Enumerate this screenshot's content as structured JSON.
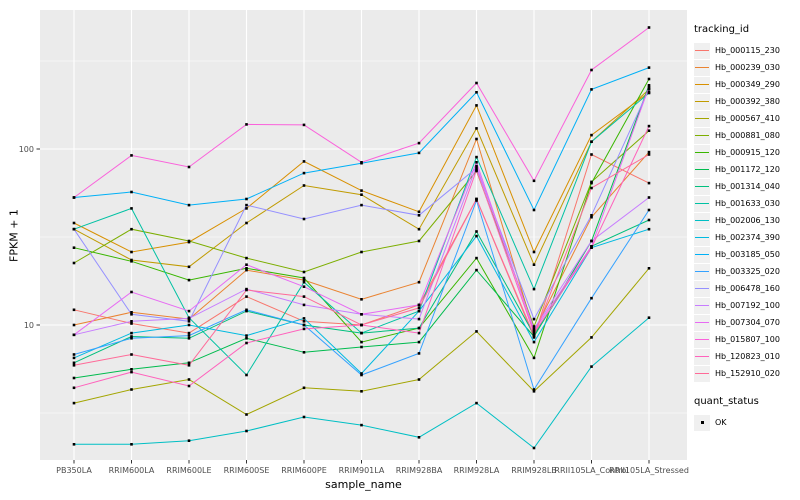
{
  "figure": {
    "panel_background": "#EBEBEB",
    "grid_color": "#FFFFFF",
    "axis_text_color": "#4D4D4D",
    "tick_color": "#333333",
    "point_color": "#000000"
  },
  "legend": {
    "tracking_title": "tracking_id",
    "quant_title": "quant_status",
    "quant_ok_label": "OK"
  },
  "chart_data": {
    "type": "line",
    "title": "",
    "xlabel": "sample_name",
    "ylabel": "FPKM + 1",
    "y_scale": "log10",
    "y_ticks": [
      100,
      10
    ],
    "y_minor_exponents": [
      0.5,
      1.5,
      2.5
    ],
    "y_range_approx": [
      1.7,
      620
    ],
    "grid": true,
    "legend_position": "right",
    "point_shape": "filled-square",
    "categories": [
      "PB350LA",
      "RRIM600LA",
      "RRIM600LE",
      "RRIM600SE",
      "RRIM600PE",
      "RRIM901LA",
      "RRIM928BA",
      "RRIM928LA",
      "RRIM928LB",
      "RRII105LA_Control",
      "RRII105LA_Stressed"
    ],
    "series": [
      {
        "name": "Hb_000115_230",
        "color": "#F8766D",
        "values": [
          12.2,
          10.2,
          9.0,
          14.5,
          10.5,
          10.0,
          13.0,
          52,
          8.5,
          93,
          64
        ]
      },
      {
        "name": "Hb_000239_030",
        "color": "#EA8331",
        "values": [
          10.0,
          11.8,
          10.8,
          20.5,
          18.0,
          14.0,
          17.5,
          114,
          9.2,
          41,
          96
        ]
      },
      {
        "name": "Hb_000349_290",
        "color": "#D89000",
        "values": [
          38,
          26,
          29.6,
          46,
          85,
          58,
          44,
          177,
          26,
          120,
          210
        ]
      },
      {
        "name": "Hb_000392_380",
        "color": "#C09B00",
        "values": [
          35,
          23.4,
          21.4,
          38,
          62,
          55,
          35,
          131,
          22,
          110,
          218
        ]
      },
      {
        "name": "Hb_000567_410",
        "color": "#A3A500",
        "values": [
          3.6,
          4.3,
          4.9,
          3.1,
          4.4,
          4.2,
          4.9,
          9.2,
          4.2,
          8.5,
          21
        ]
      },
      {
        "name": "Hb_000881_080",
        "color": "#7CAE00",
        "values": [
          22.5,
          35,
          30,
          24,
          20,
          26,
          30,
          75,
          9.8,
          65,
          127
        ]
      },
      {
        "name": "Hb_000915_120",
        "color": "#39B600",
        "values": [
          27.5,
          23,
          18,
          21,
          18.5,
          8.0,
          9.6,
          24,
          6.5,
          64,
          250
        ]
      },
      {
        "name": "Hb_001172_120",
        "color": "#00BB4E",
        "values": [
          5.0,
          5.6,
          6.1,
          8.4,
          7.0,
          7.5,
          8.0,
          20.5,
          8.6,
          30,
          230
        ]
      },
      {
        "name": "Hb_001314_040",
        "color": "#00BF7D",
        "values": [
          6.1,
          8.6,
          8.4,
          12.0,
          10.0,
          9.0,
          9.6,
          34,
          8.8,
          28,
          39.5
        ]
      },
      {
        "name": "Hb_001633_030",
        "color": "#00C1A3",
        "values": [
          35,
          46,
          11.0,
          5.2,
          17.5,
          9.0,
          12.0,
          90,
          16,
          110,
          208
        ]
      },
      {
        "name": "Hb_002006_130",
        "color": "#00BFC4",
        "values": [
          2.1,
          2.1,
          2.2,
          2.5,
          3.0,
          2.7,
          2.3,
          3.6,
          2.0,
          5.8,
          11
        ]
      },
      {
        "name": "Hb_002374_390",
        "color": "#00BAE0",
        "values": [
          6.5,
          9.0,
          10.0,
          8.7,
          10.9,
          5.3,
          12.0,
          32,
          8.0,
          27.5,
          35
        ]
      },
      {
        "name": "Hb_003185_050",
        "color": "#00B0F6",
        "values": [
          53,
          57,
          48,
          52,
          73,
          83,
          95,
          210,
          45,
          218,
          290
        ]
      },
      {
        "name": "Hb_003325_020",
        "color": "#35A2FF",
        "values": [
          6.8,
          8.4,
          8.7,
          12.2,
          10.0,
          5.2,
          6.9,
          51,
          4.3,
          14.2,
          45
        ]
      },
      {
        "name": "Hb_006478_160",
        "color": "#9590FF",
        "values": [
          35,
          11.5,
          10.5,
          48,
          40,
          48,
          42,
          78,
          10.8,
          42,
          220
        ]
      },
      {
        "name": "Hb_007192_100",
        "color": "#C77CFF",
        "values": [
          8.8,
          10.5,
          10.9,
          16,
          13,
          11.5,
          10.8,
          80,
          9.5,
          30,
          53
        ]
      },
      {
        "name": "Hb_007304_070",
        "color": "#E76BF3",
        "values": [
          8.8,
          15.4,
          12,
          22,
          16.5,
          11.5,
          13,
          84,
          9.3,
          28,
          225
        ]
      },
      {
        "name": "Hb_015807_100",
        "color": "#FA62DB",
        "values": [
          53,
          92,
          79,
          138,
          137,
          84,
          108,
          237,
          66,
          281,
          490
        ]
      },
      {
        "name": "Hb_120823_010",
        "color": "#FF62BC",
        "values": [
          4.4,
          5.4,
          4.5,
          7.9,
          9.5,
          10,
          9.0,
          76,
          9.0,
          27.5,
          135
        ]
      },
      {
        "name": "Hb_152910_020",
        "color": "#FF6A98",
        "values": [
          5.9,
          6.8,
          5.9,
          15.8,
          14.5,
          10.0,
          12.5,
          52,
          8.7,
          60,
          93
        ]
      }
    ]
  }
}
